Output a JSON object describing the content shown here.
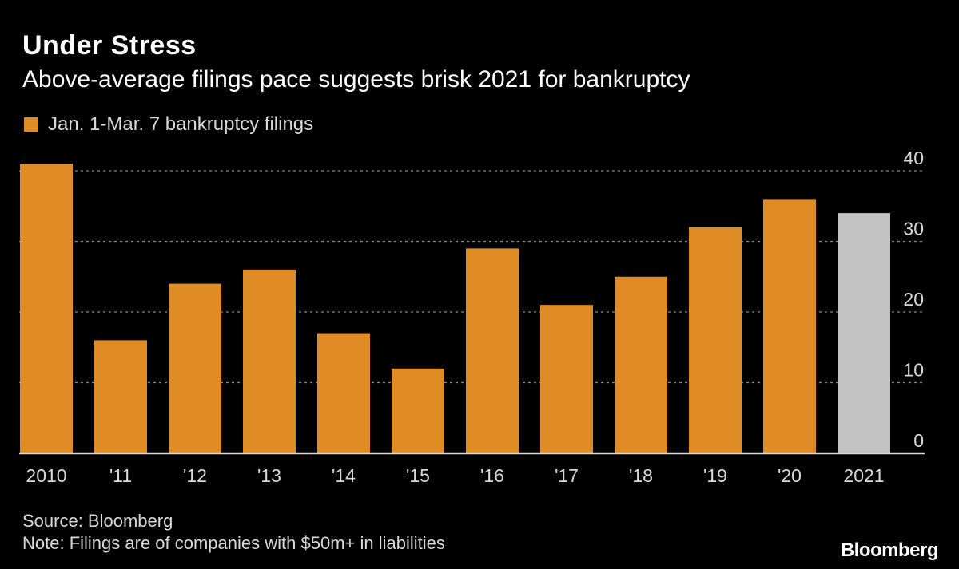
{
  "header": {
    "title": "Under Stress",
    "subtitle": "Above-average filings pace suggests brisk 2021 for bankruptcy"
  },
  "legend": {
    "label": "Jan. 1-Mar. 7 bankruptcy filings"
  },
  "footer": {
    "source": "Source: Bloomberg",
    "note": "Note: Filings are of companies with $50m+ in liabilities",
    "brand": "Bloomberg"
  },
  "colors": {
    "bar": "#df8b26",
    "highlight": "#c2c2c2",
    "grid": "#8a8a8a",
    "text": "#d9d9d9"
  },
  "chart_data": {
    "type": "bar",
    "categories": [
      "2010",
      "'11",
      "'12",
      "'13",
      "'14",
      "'15",
      "'16",
      "'17",
      "'18",
      "'19",
      "'20",
      "2021"
    ],
    "values": [
      41,
      16,
      24,
      26,
      17,
      12,
      29,
      21,
      25,
      32,
      36,
      34
    ],
    "highlight_index": 11,
    "ylim": [
      0,
      40
    ],
    "yticks": [
      0,
      10,
      20,
      30,
      40
    ],
    "ytick_labels": [
      "0",
      "10",
      "20",
      "30",
      "40"
    ],
    "y_axis_side": "right",
    "grid": true,
    "legend_placement": "top-left"
  }
}
